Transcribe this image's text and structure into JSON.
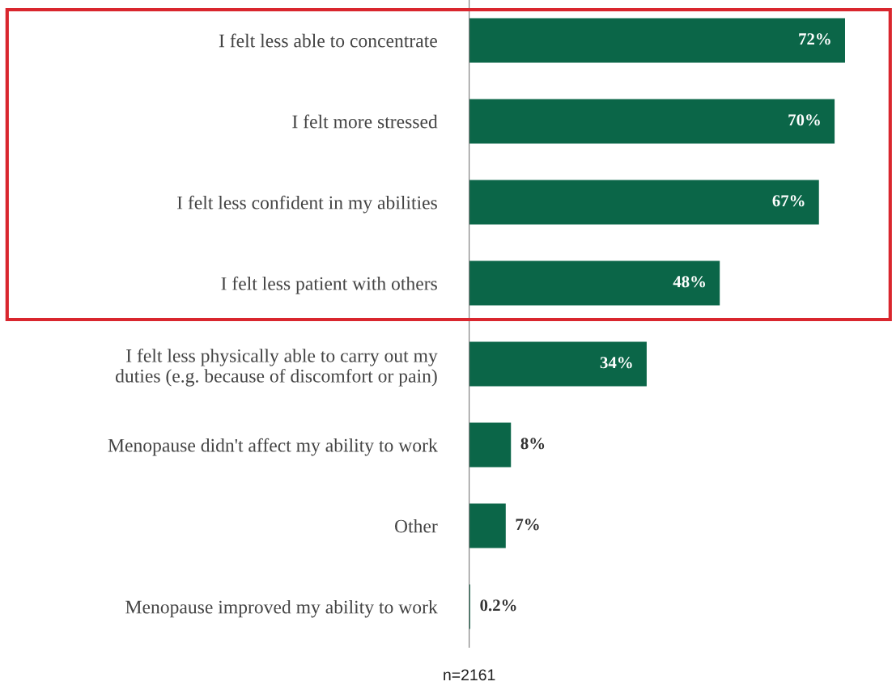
{
  "chart_data": {
    "type": "bar",
    "orientation": "horizontal",
    "categories": [
      "I felt less able to concentrate",
      "I felt more stressed",
      "I felt less confident in my abilities",
      "I felt less patient with others",
      "I felt less physically able to carry out my\nduties (e.g. because of discomfort or pain)",
      "Menopause didn't affect my ability to work",
      "Other",
      "Menopause improved my ability to work"
    ],
    "values": [
      72,
      70,
      67,
      48,
      34,
      8,
      7,
      0.2
    ],
    "value_labels": [
      "72%",
      "70%",
      "67%",
      "48%",
      "34%",
      "8%",
      "7%",
      "0.2%"
    ],
    "color": "#0b6648",
    "annotations": [
      "n=2161"
    ],
    "grid": false,
    "legend": false
  }
}
